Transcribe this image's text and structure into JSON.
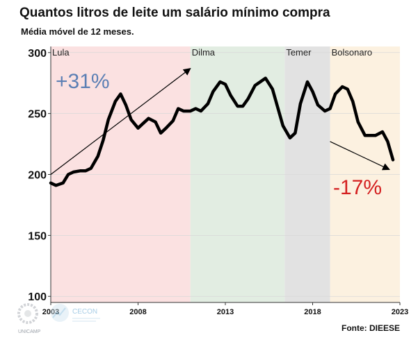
{
  "title": "Quantos litros de leite um salário mínimo compra",
  "subtitle": "Média móvel de 12 meses.",
  "source": "Fonte: DIEESE",
  "logos": {
    "unicamp": "UNICAMP",
    "cecon": "CECON"
  },
  "chart_data": {
    "type": "line",
    "xlim": [
      2003,
      2023
    ],
    "ylim": [
      95,
      305
    ],
    "xticks": [
      "2003",
      "2008",
      "2013",
      "2018",
      "2023"
    ],
    "yticks": [
      "100",
      "150",
      "200",
      "250",
      "300"
    ],
    "grid": true,
    "periods": [
      {
        "label": "Lula",
        "start": 2003,
        "end": 2011,
        "color": "#fbe1e1"
      },
      {
        "label": "Dilma",
        "start": 2011,
        "end": 2016.4,
        "color": "#e2ede2"
      },
      {
        "label": "Temer",
        "start": 2016.4,
        "end": 2019,
        "color": "#e2e2e2"
      },
      {
        "label": "Bolsonaro",
        "start": 2019,
        "end": 2023,
        "color": "#fcf1e0"
      }
    ],
    "annotations": [
      {
        "text": "+31%",
        "color": "#5b7fb4"
      },
      {
        "text": "-17%",
        "color": "#d42020"
      }
    ],
    "arrows": [
      {
        "from": [
          2003,
          200
        ],
        "to": [
          2011,
          287
        ]
      },
      {
        "from": [
          2019,
          227
        ],
        "to": [
          2022.4,
          204
        ]
      }
    ],
    "series": [
      {
        "x": [
          2003.0,
          2003.3,
          2003.7,
          2004.0,
          2004.3,
          2004.7,
          2005.0,
          2005.3,
          2005.7,
          2006.0,
          2006.3,
          2006.7,
          2007.0,
          2007.3,
          2007.6,
          2008.0,
          2008.3,
          2008.6,
          2009.0,
          2009.3,
          2009.6,
          2010.0,
          2010.3,
          2010.6,
          2011.0,
          2011.3,
          2011.6,
          2012.0,
          2012.3,
          2012.7,
          2013.0,
          2013.3,
          2013.7,
          2014.0,
          2014.3,
          2014.7,
          2015.0,
          2015.3,
          2015.7,
          2016.0,
          2016.3,
          2016.7,
          2017.0,
          2017.3,
          2017.7,
          2018.0,
          2018.3,
          2018.7,
          2019.0,
          2019.3,
          2019.7,
          2020.0,
          2020.3,
          2020.6,
          2021.0,
          2021.3,
          2021.6,
          2022.0,
          2022.3,
          2022.6
        ],
        "values": [
          193,
          191,
          193,
          200,
          202,
          203,
          203,
          205,
          215,
          228,
          245,
          260,
          266,
          257,
          245,
          238,
          242,
          246,
          243,
          234,
          238,
          244,
          254,
          252,
          252,
          254,
          252,
          258,
          268,
          276,
          274,
          265,
          256,
          256,
          262,
          273,
          276,
          279,
          270,
          255,
          240,
          230,
          234,
          258,
          276,
          268,
          257,
          252,
          254,
          266,
          272,
          270,
          260,
          243,
          232,
          232,
          232,
          235,
          227,
          212
        ]
      }
    ]
  }
}
